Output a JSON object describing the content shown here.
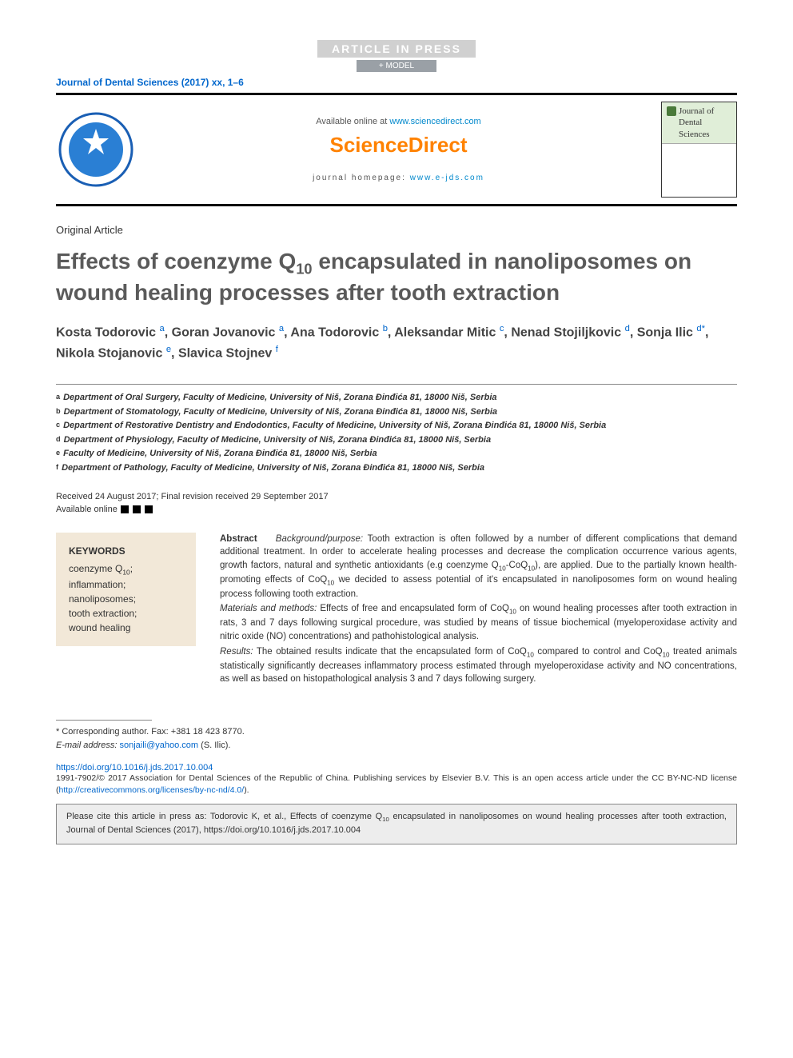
{
  "banner": {
    "article_in_press": "ARTICLE IN PRESS",
    "model": "+ MODEL"
  },
  "journal_ref": "Journal of Dental Sciences (2017) xx, 1–6",
  "header": {
    "available_text": "Available online at ",
    "available_link": "www.sciencedirect.com",
    "sd_logo": "ScienceDirect",
    "homepage_label": "journal homepage: ",
    "homepage_link": "www.e-jds.com",
    "cover_title": "Journal of Dental Sciences"
  },
  "article_type": "Original Article",
  "title_parts": {
    "pre": "Effects of coenzyme Q",
    "sub": "10",
    "post": " encapsulated in nanoliposomes on wound healing processes after tooth extraction"
  },
  "authors_html": "Kosta Todorovic <sup>a</sup>, Goran Jovanovic <sup>a</sup>, Ana Todorovic <sup>b</sup>, Aleksandar Mitic <sup>c</sup>, Nenad Stojiljkovic <sup>d</sup>, Sonja Ilic <sup>d<span class='star'>*</span></sup>, Nikola Stojanovic <sup>e</sup>, Slavica Stojnev <sup>f</sup>",
  "affiliations": [
    {
      "key": "a",
      "text": "Department of Oral Surgery, Faculty of Medicine, University of Niš, Zorana Đinđića 81, 18000 Niš, Serbia"
    },
    {
      "key": "b",
      "text": "Department of Stomatology, Faculty of Medicine, University of Niš, Zorana Đinđića 81, 18000 Niš, Serbia"
    },
    {
      "key": "c",
      "text": "Department of Restorative Dentistry and Endodontics, Faculty of Medicine, University of Niš, Zorana Đinđića 81, 18000 Niš, Serbia"
    },
    {
      "key": "d",
      "text": "Department of Physiology, Faculty of Medicine, University of Niš, Zorana Đinđića 81, 18000 Niš, Serbia"
    },
    {
      "key": "e",
      "text": "Faculty of Medicine, University of Niš, Zorana Đinđića 81, 18000 Niš, Serbia"
    },
    {
      "key": "f",
      "text": "Department of Pathology, Faculty of Medicine, University of Niš, Zorana Đinđića 81, 18000 Niš, Serbia"
    }
  ],
  "dates": {
    "received": "Received 24 August 2017; Final revision received 29 September 2017",
    "available": "Available online"
  },
  "keywords": {
    "heading": "KEYWORDS",
    "items_html": "coenzyme Q<sub>10</sub>;<br>inflammation;<br>nanoliposomes;<br>tooth extraction;<br>wound healing"
  },
  "abstract": {
    "label": "Abstract",
    "background_label": "Background/purpose:",
    "background_text": " Tooth extraction is often followed by a number of different complications that demand additional treatment. In order to accelerate healing processes and decrease the complication occurrence various agents, growth factors, natural and synthetic antioxidants (e.g coenzyme Q<sub>10</sub>-CoQ<sub>10</sub>), are applied. Due to the partially known health-promoting effects of CoQ<sub>10</sub> we decided to assess potential of it's encapsulated in nanoliposomes form on wound healing process following tooth extraction.",
    "methods_label": "Materials and methods:",
    "methods_text": " Effects of free and encapsulated form of CoQ<sub>10</sub> on wound healing processes after tooth extraction in rats, 3 and 7 days following surgical procedure, was studied by means of tissue biochemical (myeloperoxidase activity and nitric oxide (NO) concentrations) and pathohistological analysis.",
    "results_label": "Results:",
    "results_text": " The obtained results indicate that the encapsulated form of CoQ<sub>10</sub> compared to control and CoQ<sub>10</sub> treated animals statistically significantly decreases inflammatory process estimated through myeloperoxidase activity and NO concentrations, as well as based on histopathological analysis 3 and 7 days following surgery."
  },
  "corresponding": {
    "line1": "* Corresponding author. Fax: +381 18 423 8770.",
    "email_label": "E-mail address: ",
    "email": "sonjaili@yahoo.com",
    "email_person": " (S. Ilic)."
  },
  "doi": {
    "url": "https://doi.org/10.1016/j.jds.2017.10.004"
  },
  "copyright": {
    "text_pre": "1991-7902/© 2017 Association for Dental Sciences of the Republic of China. Publishing services by Elsevier B.V. This is an open access article under the CC BY-NC-ND license (",
    "license_url": "http://creativecommons.org/licenses/by-nc-nd/4.0/",
    "text_post": ")."
  },
  "cite_box": {
    "text_pre": "Please cite this article in press as: Todorovic K, et al., Effects of coenzyme Q",
    "sub": "10",
    "text_mid": " encapsulated in nanoliposomes on wound healing processes after tooth extraction, Journal of Dental Sciences (2017), ",
    "url": "https://doi.org/10.1016/j.jds.2017.10.004"
  },
  "colors": {
    "link": "#0066cc",
    "sd_orange": "#ff8200",
    "title_gray": "#5a5a5a",
    "keywords_bg": "#f2e8d8",
    "cite_bg": "#ededed",
    "cover_green": "#e0eed8"
  }
}
